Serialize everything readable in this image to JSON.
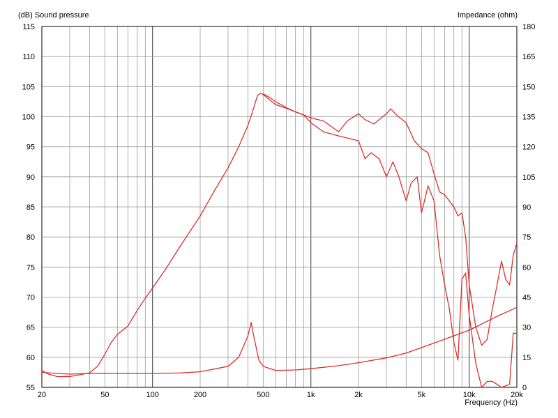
{
  "chart_data": {
    "type": "line",
    "title": "",
    "ylabel_left": "(dB)  Sound pressure",
    "ylabel_right": "Impedance  (ohm)",
    "xlabel": "Frequency  (Hz)",
    "x_scale": "log",
    "xlim": [
      20,
      20000
    ],
    "ylim_left": [
      55,
      115
    ],
    "ylim_right": [
      0,
      180
    ],
    "grid": true,
    "x_tick_labels": [
      {
        "value": 20,
        "label": "20"
      },
      {
        "value": 50,
        "label": "50"
      },
      {
        "value": 100,
        "label": "100"
      },
      {
        "value": 200,
        "label": "200"
      },
      {
        "value": 500,
        "label": "500"
      },
      {
        "value": 1000,
        "label": "1k"
      },
      {
        "value": 2000,
        "label": "2k"
      },
      {
        "value": 5000,
        "label": "5k"
      },
      {
        "value": 10000,
        "label": "10k"
      },
      {
        "value": 20000,
        "label": "20k"
      }
    ],
    "y_left_ticks": [
      55,
      60,
      65,
      70,
      75,
      80,
      85,
      90,
      95,
      100,
      105,
      110,
      115
    ],
    "y_right_ticks": [
      0,
      15,
      30,
      45,
      60,
      75,
      90,
      105,
      120,
      135,
      150,
      165,
      180
    ],
    "line_color": "#d9302a",
    "series": [
      {
        "axis": "left",
        "points": [
          [
            20,
            57.8
          ],
          [
            22,
            57.2
          ],
          [
            25,
            56.8
          ],
          [
            30,
            56.8
          ],
          [
            35,
            57.1
          ],
          [
            40,
            57.4
          ],
          [
            45,
            58.5
          ],
          [
            50,
            60.5
          ],
          [
            55,
            62.5
          ],
          [
            60,
            63.8
          ],
          [
            70,
            65.2
          ],
          [
            80,
            67.8
          ],
          [
            90,
            69.8
          ],
          [
            100,
            71.5
          ],
          [
            120,
            74.5
          ],
          [
            150,
            78.5
          ],
          [
            200,
            83.5
          ],
          [
            250,
            88
          ],
          [
            300,
            91.5
          ],
          [
            350,
            95
          ],
          [
            400,
            98.5
          ],
          [
            430,
            101
          ],
          [
            460,
            103.5
          ],
          [
            480,
            103.9
          ],
          [
            500,
            103.7
          ],
          [
            550,
            102.8
          ],
          [
            600,
            102
          ],
          [
            700,
            101.4
          ],
          [
            800,
            100.8
          ],
          [
            900,
            100.3
          ],
          [
            1000,
            99.8
          ],
          [
            1200,
            99.3
          ],
          [
            1500,
            97.5
          ],
          [
            1700,
            99.3
          ],
          [
            2000,
            100.5
          ],
          [
            2200,
            99.5
          ],
          [
            2500,
            98.8
          ],
          [
            3000,
            100.5
          ],
          [
            3200,
            101.3
          ],
          [
            3500,
            100.2
          ],
          [
            4000,
            99
          ],
          [
            4500,
            96
          ],
          [
            5000,
            94.7
          ],
          [
            5500,
            94
          ],
          [
            6000,
            90.5
          ],
          [
            6500,
            87.5
          ],
          [
            7000,
            87
          ],
          [
            8000,
            85
          ],
          [
            8500,
            83.5
          ],
          [
            9000,
            84
          ],
          [
            9500,
            80
          ],
          [
            10000,
            72
          ],
          [
            11000,
            65
          ],
          [
            12000,
            62
          ],
          [
            13000,
            63
          ],
          [
            14000,
            68
          ],
          [
            15000,
            72
          ],
          [
            16000,
            76
          ],
          [
            17000,
            73
          ],
          [
            18000,
            72
          ],
          [
            19000,
            77
          ],
          [
            20000,
            79
          ]
        ]
      },
      {
        "axis": "left",
        "points": [
          [
            20,
            57.5
          ],
          [
            25,
            57.3
          ],
          [
            30,
            57.2
          ],
          [
            40,
            57.3
          ],
          [
            50,
            57.3
          ],
          [
            100,
            57.3
          ],
          [
            150,
            57.4
          ],
          [
            200,
            57.6
          ],
          [
            300,
            58.5
          ],
          [
            350,
            60
          ],
          [
            400,
            63.5
          ],
          [
            420,
            65.8
          ],
          [
            440,
            63
          ],
          [
            470,
            59.5
          ],
          [
            500,
            58.5
          ],
          [
            600,
            57.8
          ],
          [
            800,
            57.9
          ],
          [
            1000,
            58.1
          ],
          [
            1500,
            58.6
          ],
          [
            2000,
            59.1
          ],
          [
            3000,
            59.9
          ],
          [
            4000,
            60.7
          ],
          [
            5000,
            61.6
          ],
          [
            7000,
            63
          ],
          [
            10000,
            64.5
          ],
          [
            15000,
            66.8
          ],
          [
            20000,
            68.3
          ]
        ]
      },
      {
        "axis": "left",
        "points": [
          [
            500,
            103.8
          ],
          [
            550,
            103.2
          ],
          [
            600,
            102.5
          ],
          [
            700,
            101.5
          ],
          [
            800,
            100.8
          ],
          [
            900,
            100.3
          ],
          [
            1000,
            99
          ],
          [
            1200,
            97.5
          ],
          [
            1500,
            96.8
          ],
          [
            2000,
            96
          ],
          [
            2200,
            93
          ],
          [
            2400,
            94
          ],
          [
            2700,
            93
          ],
          [
            3000,
            90
          ],
          [
            3300,
            92.5
          ],
          [
            3600,
            90
          ],
          [
            4000,
            86
          ],
          [
            4300,
            89
          ],
          [
            4700,
            90
          ],
          [
            5000,
            84
          ],
          [
            5500,
            88.5
          ],
          [
            6000,
            86
          ],
          [
            6500,
            77
          ],
          [
            7000,
            72
          ],
          [
            7500,
            68
          ],
          [
            8000,
            62.5
          ],
          [
            8500,
            59.5
          ],
          [
            9000,
            73
          ],
          [
            9500,
            74
          ],
          [
            10000,
            67
          ],
          [
            11000,
            59
          ],
          [
            12000,
            55
          ],
          [
            13000,
            56
          ],
          [
            14000,
            56
          ],
          [
            15000,
            55.5
          ],
          [
            16000,
            55
          ],
          [
            18000,
            55.5
          ],
          [
            19000,
            64
          ],
          [
            20000,
            64
          ]
        ]
      }
    ]
  }
}
